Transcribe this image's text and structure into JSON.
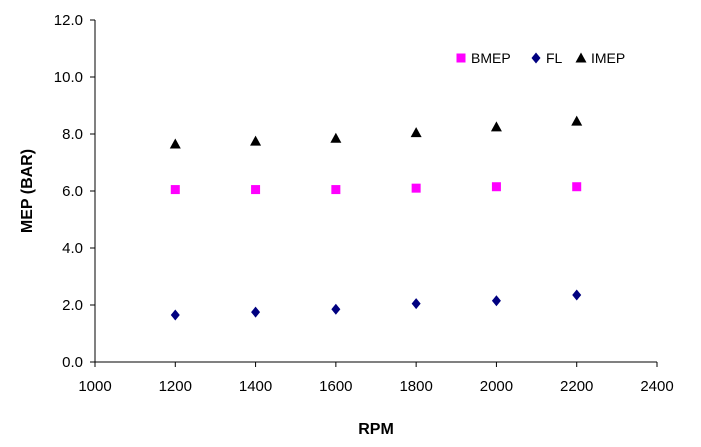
{
  "chart_data": {
    "type": "scatter",
    "title": "",
    "xlabel": "RPM",
    "ylabel": "MEP (BAR)",
    "xlim": [
      1000,
      2400
    ],
    "ylim": [
      0.0,
      12.0
    ],
    "xticks": [
      "1000",
      "1200",
      "1400",
      "1600",
      "1800",
      "2000",
      "2200",
      "2400"
    ],
    "yticks": [
      "0.0",
      "2.0",
      "4.0",
      "6.0",
      "8.0",
      "10.0",
      "12.0"
    ],
    "grid": false,
    "legend_position": "top-right",
    "x": [
      1200,
      1400,
      1600,
      1800,
      2000,
      2200
    ],
    "series": [
      {
        "name": "BMEP",
        "marker": "square",
        "color": "#ff00ff",
        "values": [
          6.05,
          6.05,
          6.05,
          6.1,
          6.15,
          6.15
        ]
      },
      {
        "name": "FL",
        "marker": "diamond",
        "color": "#000080",
        "values": [
          1.65,
          1.75,
          1.85,
          2.05,
          2.15,
          2.35
        ]
      },
      {
        "name": "IMEP",
        "marker": "triangle",
        "color": "#000000",
        "values": [
          7.65,
          7.75,
          7.85,
          8.05,
          8.25,
          8.45
        ]
      }
    ]
  }
}
